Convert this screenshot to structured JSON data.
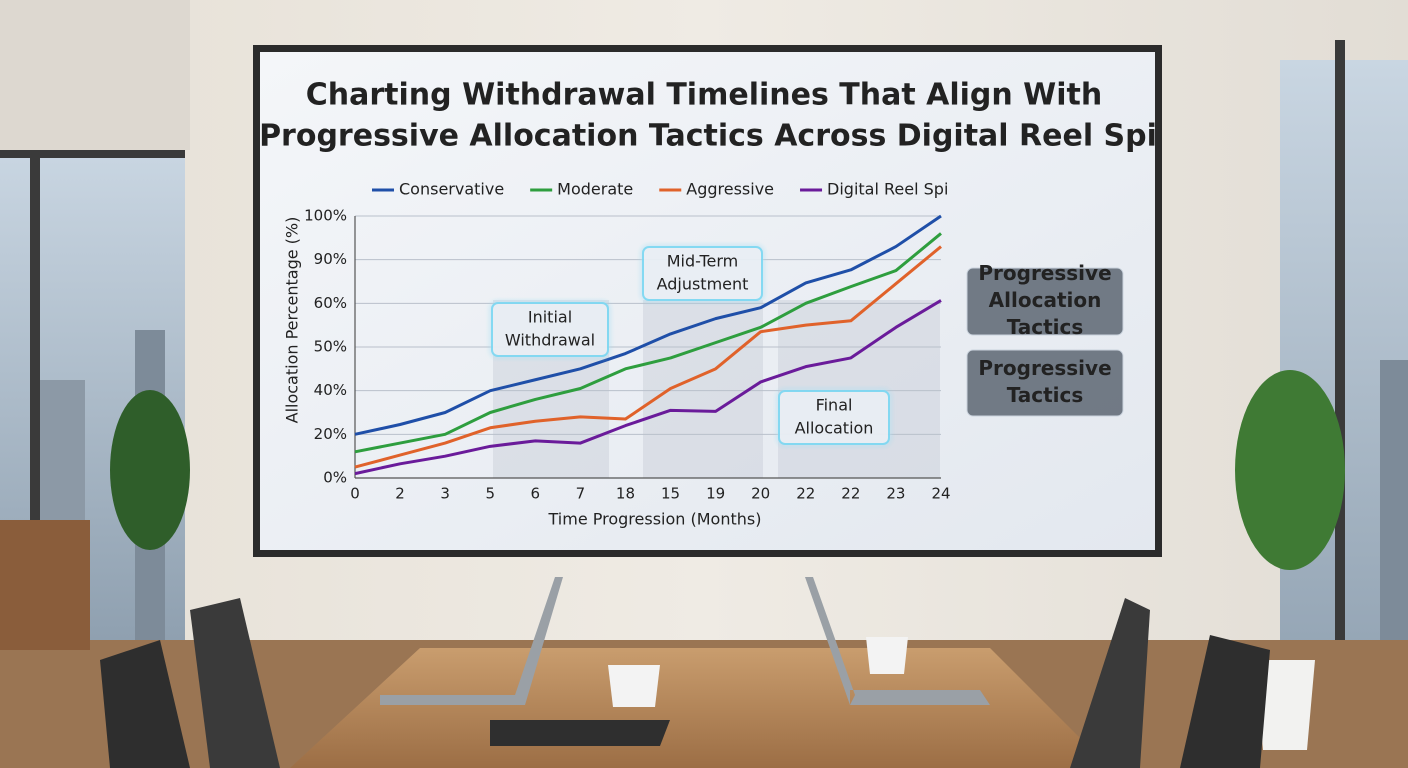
{
  "chart_data": {
    "type": "line",
    "title": [
      "Charting Withdrawal Timelines That Align With",
      "Progressive Allocation Tactics Across Digital Reel Spi"
    ],
    "x_label": "Time Progression (Months)",
    "y_label": "Allocation Percentage (%)",
    "categories": [
      "0",
      "2",
      "3",
      "5",
      "6",
      "7",
      "18",
      "15",
      "19",
      "20",
      "22",
      "22",
      "23",
      "24"
    ],
    "series": [
      {
        "name": "Conservative",
        "color": "#1f4fa8",
        "values": [
          20,
          24.5,
          30,
          40,
          42.5,
          45,
          48.5,
          53,
          56.5,
          59,
          74,
          83,
          93,
          100
        ]
      },
      {
        "name": "Moderate",
        "color": "#2e9e3e",
        "values": [
          12,
          16,
          20,
          30,
          36,
          40.5,
          45,
          47.5,
          51,
          54.5,
          60,
          71.5,
          82.5,
          96
        ]
      },
      {
        "name": "Aggressive",
        "color": "#e0622a",
        "values": [
          5,
          10.5,
          16,
          23,
          26,
          28,
          27,
          40.5,
          45,
          53.5,
          55,
          56,
          73.5,
          93
        ]
      },
      {
        "name": "Digital Reel Spi",
        "color": "#6a1b9a",
        "values": [
          2,
          6.5,
          10,
          14.5,
          17,
          16,
          24,
          31,
          30.5,
          42,
          45.5,
          47.5,
          54.5,
          62
        ]
      }
    ],
    "ylim": [
      0,
      100
    ],
    "yticks": [
      {
        "value": 0,
        "label": "0%"
      },
      {
        "value": 20,
        "label": "20%"
      },
      {
        "value": 40,
        "label": "40%"
      },
      {
        "value": 50,
        "label": "50%"
      },
      {
        "value": 60,
        "label": "60%"
      },
      {
        "value": 90,
        "label": "90%"
      },
      {
        "value": 100,
        "label": "100%"
      }
    ],
    "grid": true,
    "legend": "top",
    "annotations": [
      {
        "lines": [
          "Initial",
          "Withdrawal"
        ]
      },
      {
        "lines": [
          "Mid-Term",
          "Adjustment"
        ]
      },
      {
        "lines": [
          "Final",
          "Allocation"
        ]
      }
    ],
    "side_cards": [
      {
        "lines": [
          "Progressive",
          "Allocation",
          "Tactics"
        ]
      },
      {
        "lines": [
          "Progressive",
          "Tactics"
        ]
      }
    ]
  }
}
